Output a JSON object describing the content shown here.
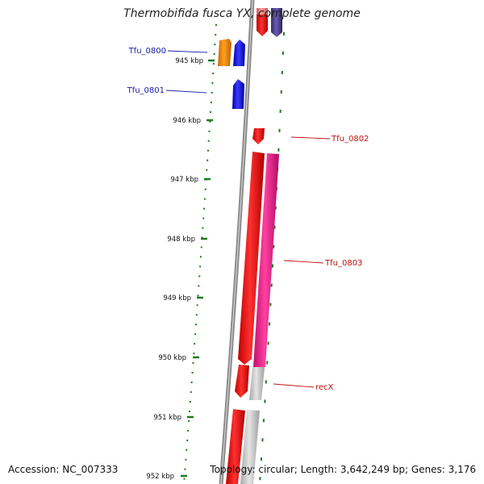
{
  "title": "Thermobifida fusca YX, complete genome",
  "accession": "Accession: NC_007333",
  "topology": "Topology: circular; Length: 3,642,249 bp; Genes: 3,176",
  "ticks": [
    "945 kbp",
    "946 kbp",
    "947 kbp",
    "948 kbp",
    "949 kbp",
    "950 kbp",
    "951 kbp",
    "952 kbp"
  ],
  "gene_labels": {
    "tfu0800": "Tfu_0800",
    "tfu0801": "Tfu_0801",
    "tfu0802": "Tfu_0802",
    "tfu0803": "Tfu_0803",
    "recx": "recX"
  },
  "colors": {
    "backbone": "#8a8a8a",
    "tick": "#1f7a1f",
    "gene_red": "#ee1111",
    "gene_blue": "#1a1aee",
    "gene_orange": "#f08c00",
    "gene_magenta": "#ee1a88",
    "gene_grey": "#c8c8c8",
    "gene_purple": "#4b3f8c",
    "gene_pink": "#f2a0a0",
    "label_blue": "#1a1aaa",
    "label_red": "#bb1111"
  }
}
